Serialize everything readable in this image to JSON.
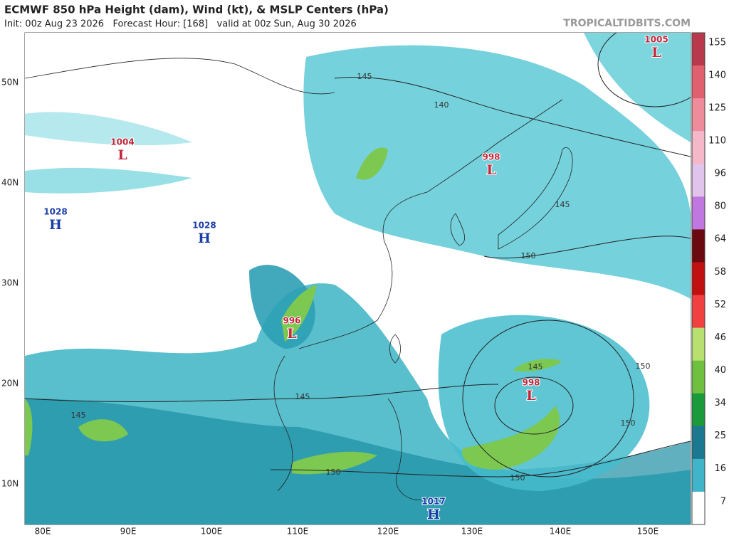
{
  "header": {
    "title": "ECMWF 850 hPa Height (dam), Wind (kt), & MSLP Centers (hPa)",
    "subtitle": "Init: 00z Aug 23 2026   Forecast Hour: [168]   valid at 00z Sun, Aug 30 2026",
    "watermark": "TROPICALTIDBITS.COM"
  },
  "map": {
    "lat_labels": [
      "50N",
      "40N",
      "30N",
      "20N",
      "10N"
    ],
    "lon_labels": [
      "80E",
      "90E",
      "100E",
      "110E",
      "120E",
      "130E",
      "140E",
      "150E"
    ],
    "centers": [
      {
        "value": 1004,
        "symbol": "L"
      },
      {
        "value": 1028,
        "symbol": "H"
      },
      {
        "value": 1028,
        "symbol": "H"
      },
      {
        "value": 996,
        "symbol": "L"
      },
      {
        "value": 998,
        "symbol": "L"
      },
      {
        "value": 998,
        "symbol": "L"
      },
      {
        "value": 1005,
        "symbol": "L"
      },
      {
        "value": 1017,
        "symbol": "H"
      }
    ],
    "contour_labels": [
      145,
      140,
      145,
      150,
      150,
      145,
      150,
      145,
      145,
      150,
      150
    ]
  },
  "colorbar": {
    "labels": [
      155,
      140,
      125,
      110,
      96,
      80,
      64,
      58,
      52,
      46,
      40,
      34,
      25,
      16,
      7
    ],
    "colors": [
      "#b8384c",
      "#e06070",
      "#ee8c9c",
      "#f4b8c8",
      "#e0c4ec",
      "#c078e0",
      "#6a0a10",
      "#c01010",
      "#f04040",
      "#b8e070",
      "#70c040",
      "#1a9a3a",
      "#1a7890",
      "#40b4c8",
      "#ffffff"
    ]
  }
}
